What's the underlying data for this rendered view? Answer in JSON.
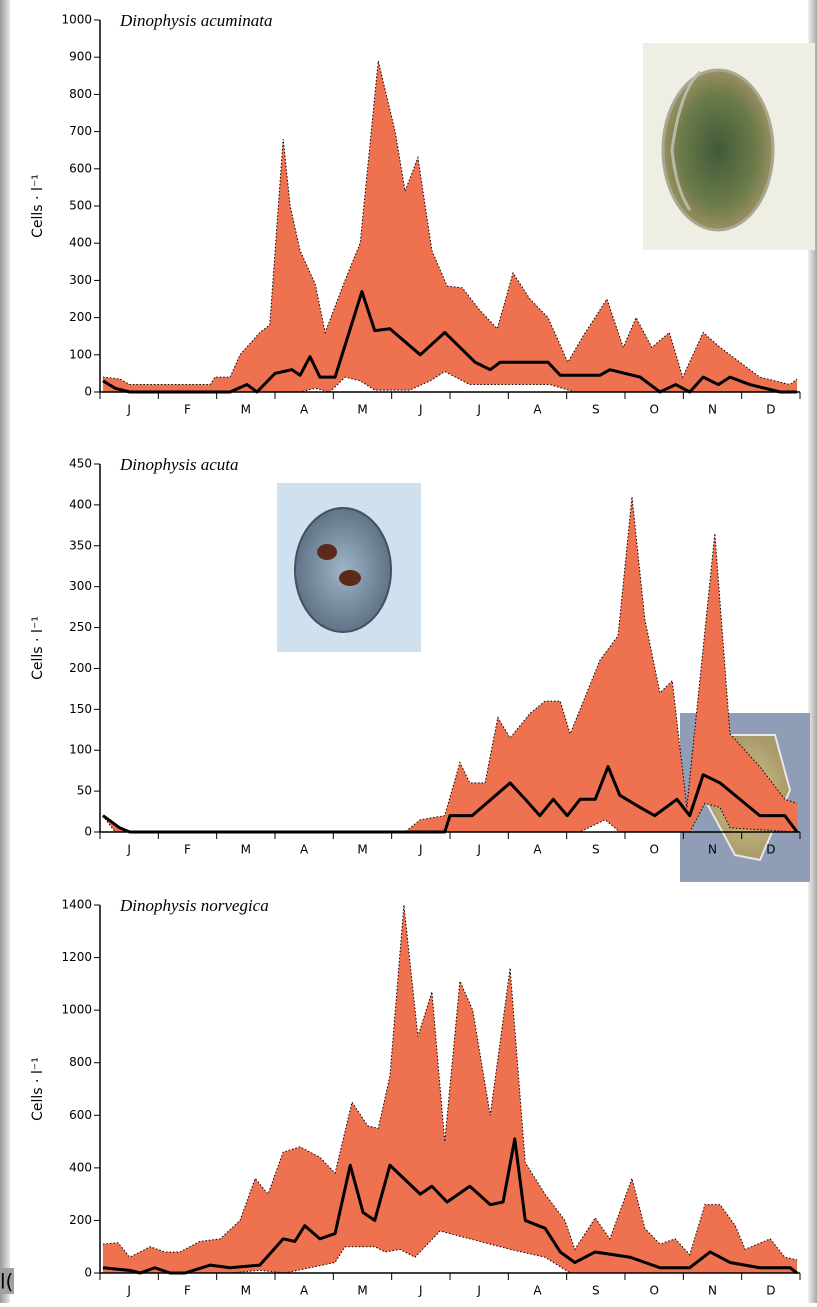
{
  "chart_data": [
    {
      "type": "area",
      "title": "Dinophysis acuminata",
      "ylabel": "Cells · l⁻¹",
      "categories": [
        "J",
        "F",
        "M",
        "A",
        "M",
        "J",
        "J",
        "A",
        "S",
        "O",
        "N",
        "D"
      ],
      "xlim": [
        0,
        12
      ],
      "ylim": [
        0,
        1000
      ],
      "yticks": [
        0,
        100,
        200,
        300,
        400,
        500,
        600,
        700,
        800,
        900,
        1000
      ],
      "band_color": "#ee7150",
      "line_color": "#000000",
      "upper": {
        "x": [
          0.05,
          0.34,
          0.51,
          1.89,
          1.97,
          2.23,
          2.4,
          2.74,
          2.91,
          3.14,
          3.26,
          3.43,
          3.69,
          3.86,
          4.2,
          4.46,
          4.77,
          5.06,
          5.23,
          5.45,
          5.69,
          5.95,
          6.21,
          6.51,
          6.81,
          7.08,
          7.37,
          7.68,
          8.02,
          8.28,
          8.69,
          8.97,
          9.19,
          9.46,
          9.76,
          9.99,
          10.34,
          10.63,
          10.97,
          11.31,
          11.83,
          11.95
        ],
        "values": [
          40,
          35,
          20,
          20,
          40,
          40,
          100,
          160,
          180,
          680,
          500,
          380,
          290,
          160,
          300,
          400,
          890,
          700,
          540,
          630,
          380,
          285,
          280,
          220,
          170,
          320,
          250,
          200,
          80,
          150,
          250,
          120,
          200,
          120,
          160,
          40,
          160,
          120,
          80,
          40,
          20,
          35
        ]
      },
      "lower": {
        "x": [
          0.05,
          3.43,
          3.69,
          3.94,
          4.2,
          4.46,
          4.71,
          5.31,
          5.66,
          5.91,
          6.34,
          7.71,
          8.14,
          11.95
        ],
        "values": [
          0,
          0,
          10,
          0,
          40,
          30,
          5,
          5,
          30,
          55,
          20,
          20,
          0,
          0
        ]
      },
      "median": {
        "x": [
          0.05,
          0.26,
          0.51,
          2.23,
          2.52,
          2.69,
          3.0,
          3.29,
          3.43,
          3.6,
          3.77,
          4.03,
          4.49,
          4.71,
          4.97,
          5.49,
          5.91,
          6.43,
          6.69,
          6.86,
          7.68,
          7.89,
          8.57,
          8.74,
          9.26,
          9.6,
          9.87,
          10.11,
          10.34,
          10.6,
          10.8,
          11.14,
          11.66,
          11.95
        ],
        "values": [
          30,
          10,
          0,
          0,
          20,
          0,
          50,
          60,
          45,
          95,
          40,
          40,
          270,
          165,
          170,
          100,
          160,
          80,
          60,
          80,
          80,
          45,
          45,
          60,
          40,
          0,
          20,
          0,
          40,
          20,
          40,
          20,
          0,
          0
        ]
      }
    },
    {
      "type": "area",
      "title": "Dinophysis acuta",
      "ylabel": "Cells · l⁻¹",
      "categories": [
        "J",
        "F",
        "M",
        "A",
        "M",
        "J",
        "J",
        "A",
        "S",
        "O",
        "N",
        "D"
      ],
      "xlim": [
        0,
        12
      ],
      "ylim": [
        0,
        450
      ],
      "yticks": [
        0,
        50,
        100,
        150,
        200,
        250,
        300,
        350,
        400,
        450
      ],
      "band_color": "#ee7150",
      "line_color": "#000000",
      "upper": {
        "x": [
          0.05,
          0.34,
          0.51,
          5.23,
          5.49,
          5.91,
          6.17,
          6.34,
          6.6,
          6.82,
          7.03,
          7.37,
          7.63,
          7.89,
          8.06,
          8.4,
          8.57,
          8.88,
          9.12,
          9.34,
          9.6,
          9.81,
          10.06,
          10.54,
          10.8,
          11.31,
          11.74,
          11.95
        ],
        "values": [
          20,
          5,
          0,
          0,
          15,
          20,
          85,
          60,
          60,
          140,
          115,
          145,
          160,
          160,
          120,
          180,
          210,
          240,
          410,
          260,
          170,
          185,
          30,
          365,
          120,
          80,
          40,
          35
        ]
      },
      "lower": {
        "x": [
          0.05,
          0.26,
          8.23,
          8.66,
          8.91,
          10.11,
          10.37,
          10.63,
          10.8,
          11.95
        ],
        "values": [
          20,
          0,
          0,
          15,
          0,
          0,
          35,
          30,
          5,
          0
        ]
      },
      "median": {
        "x": [
          0.05,
          0.34,
          0.51,
          5.91,
          6.0,
          6.38,
          7.03,
          7.29,
          7.54,
          7.77,
          8.01,
          8.23,
          8.49,
          8.71,
          8.91,
          9.26,
          9.51,
          9.89,
          10.11,
          10.34,
          10.63,
          11.31,
          11.74,
          11.95
        ],
        "values": [
          20,
          5,
          0,
          0,
          20,
          20,
          60,
          40,
          20,
          40,
          20,
          40,
          40,
          80,
          45,
          30,
          20,
          40,
          20,
          70,
          60,
          20,
          20,
          0
        ]
      }
    },
    {
      "type": "area",
      "title": "Dinophysis norvegica",
      "ylabel": "Cells · l⁻¹",
      "categories": [
        "J",
        "F",
        "M",
        "A",
        "M",
        "J",
        "J",
        "A",
        "S",
        "O",
        "N",
        "D"
      ],
      "xlim": [
        0,
        12
      ],
      "ylim": [
        0,
        1400
      ],
      "yticks": [
        0,
        200,
        400,
        600,
        800,
        1000,
        1200,
        1400
      ],
      "band_color": "#ee7150",
      "line_color": "#000000",
      "upper": {
        "x": [
          0.05,
          0.31,
          0.51,
          0.86,
          1.11,
          1.37,
          1.71,
          2.06,
          2.4,
          2.66,
          2.88,
          3.14,
          3.43,
          3.77,
          4.03,
          4.32,
          4.59,
          4.77,
          4.97,
          5.21,
          5.45,
          5.69,
          5.91,
          6.17,
          6.39,
          6.69,
          7.03,
          7.29,
          7.63,
          7.97,
          8.14,
          8.49,
          8.74,
          9.12,
          9.34,
          9.6,
          9.86,
          10.11,
          10.37,
          10.63,
          10.89,
          11.06,
          11.49,
          11.74,
          11.95
        ],
        "values": [
          110,
          115,
          60,
          100,
          80,
          80,
          120,
          130,
          200,
          360,
          300,
          460,
          480,
          440,
          380,
          650,
          560,
          550,
          750,
          1400,
          900,
          1070,
          500,
          1110,
          1000,
          600,
          1160,
          420,
          300,
          200,
          90,
          210,
          130,
          360,
          170,
          110,
          130,
          70,
          260,
          260,
          180,
          90,
          130,
          60,
          50
        ]
      },
      "lower": {
        "x": [
          0.05,
          2.23,
          2.74,
          3.17,
          3.6,
          4.03,
          4.2,
          4.71,
          4.89,
          5.14,
          5.4,
          5.83,
          6.34,
          7.03,
          7.63,
          8.06,
          11.95
        ],
        "values": [
          0,
          0,
          10,
          0,
          20,
          40,
          100,
          100,
          80,
          90,
          60,
          160,
          130,
          90,
          60,
          0,
          0
        ]
      },
      "median": {
        "x": [
          0.05,
          0.51,
          0.69,
          0.94,
          1.2,
          1.46,
          1.89,
          2.23,
          2.74,
          3.14,
          3.34,
          3.51,
          3.77,
          4.03,
          4.29,
          4.51,
          4.71,
          4.97,
          5.49,
          5.69,
          5.95,
          6.34,
          6.69,
          6.91,
          7.11,
          7.29,
          7.63,
          7.89,
          8.14,
          8.49,
          9.09,
          9.6,
          10.11,
          10.46,
          10.8,
          11.31,
          11.83,
          11.95
        ],
        "values": [
          20,
          10,
          0,
          20,
          0,
          0,
          30,
          20,
          30,
          130,
          120,
          180,
          130,
          150,
          410,
          230,
          200,
          410,
          300,
          330,
          270,
          330,
          260,
          270,
          510,
          200,
          170,
          80,
          40,
          80,
          60,
          20,
          20,
          80,
          40,
          20,
          20,
          0
        ]
      }
    }
  ],
  "fragment": "l("
}
